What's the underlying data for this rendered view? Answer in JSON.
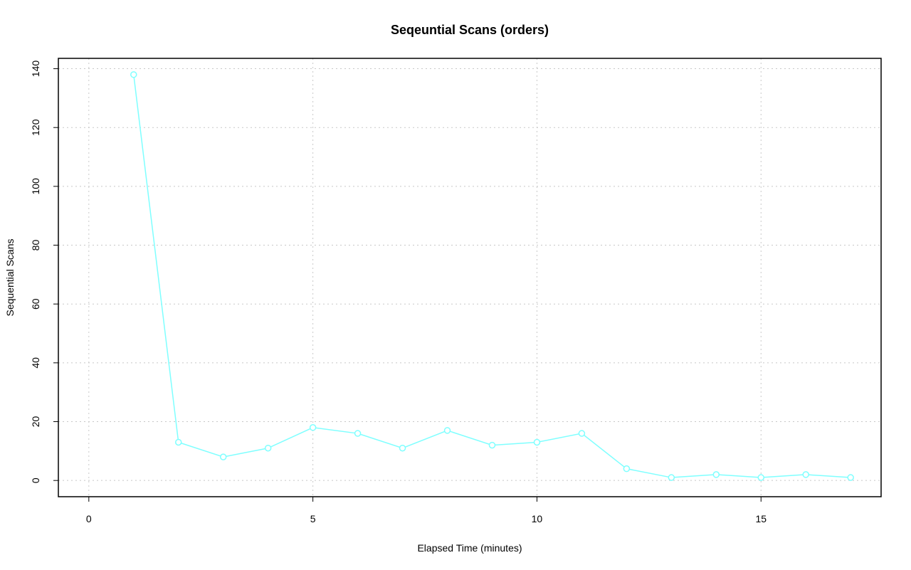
{
  "chart_data": {
    "type": "line",
    "title": "Seqeuntial Scans (orders)",
    "x_label": "Elapsed Time (minutes)",
    "y_label": "Sequential Scans",
    "x": [
      1,
      2,
      3,
      4,
      5,
      6,
      7,
      8,
      9,
      10,
      11,
      12,
      13,
      14,
      15,
      16,
      17
    ],
    "values": [
      138,
      13,
      8,
      11,
      18,
      16,
      11,
      17,
      12,
      13,
      16,
      4,
      1,
      2,
      1,
      2,
      1
    ],
    "color": "#7fffff",
    "xlim": [
      -0.68,
      17.68
    ],
    "xticks": [
      0,
      5,
      10,
      15
    ],
    "ylim": [
      -5.52,
      143.52
    ],
    "yticks": [
      0,
      20,
      40,
      60,
      80,
      100,
      120,
      140
    ],
    "grid": true
  }
}
